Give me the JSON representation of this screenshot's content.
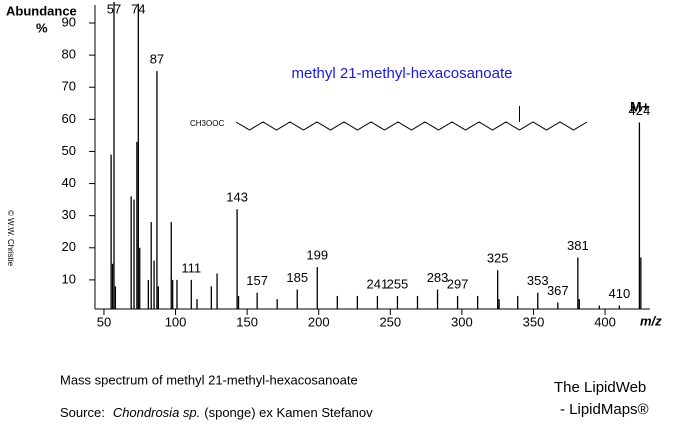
{
  "chart_data": {
    "type": "spectrum",
    "title": "methyl 21-methyl-hexacosanoate",
    "title_color": "#1a1adb",
    "y_label": "Abundance",
    "y_unit": "%",
    "x_label": "m/z",
    "structure_label": "CH3OOC",
    "molecular_ion_label": "M+",
    "copyright": "© W.W. Christie",
    "caption": "Mass spectrum of methyl 21-methyl-hexacosanoate",
    "source": {
      "prefix": "Source:",
      "organism": "Chondrosia sp.",
      "suffix": "(sponge) ex Kamen Stefanov"
    },
    "brand": [
      "The LipidWeb",
      "- LipidMaps®"
    ],
    "color": "#000000",
    "xlim": [
      45,
      430
    ],
    "ylim": [
      0,
      100
    ],
    "xticks": [
      50,
      100,
      150,
      200,
      250,
      300,
      350,
      400
    ],
    "yticks": [
      10,
      20,
      30,
      40,
      50,
      60,
      70,
      80,
      90
    ],
    "x": [
      55,
      56,
      57,
      58,
      69,
      71,
      73,
      74,
      75,
      81,
      83,
      85,
      87,
      88,
      97,
      98,
      101,
      111,
      115,
      125,
      129,
      143,
      144,
      157,
      171,
      185,
      199,
      213,
      227,
      241,
      255,
      269,
      283,
      297,
      311,
      325,
      326,
      339,
      353,
      367,
      381,
      382,
      396,
      410,
      424,
      425
    ],
    "values": [
      49,
      15,
      98,
      8,
      36,
      35,
      53,
      96,
      20,
      10,
      28,
      16,
      75,
      8,
      28,
      10,
      10,
      10,
      4,
      8,
      12,
      32,
      5,
      6,
      4,
      7,
      14,
      5,
      5,
      5,
      5,
      5,
      7,
      5,
      5,
      13,
      4,
      5,
      6,
      3,
      17,
      4,
      2,
      2,
      59,
      17
    ],
    "peak_labels": [
      57,
      74,
      87,
      111,
      143,
      157,
      185,
      199,
      241,
      255,
      283,
      297,
      325,
      353,
      367,
      381,
      410,
      424
    ]
  }
}
